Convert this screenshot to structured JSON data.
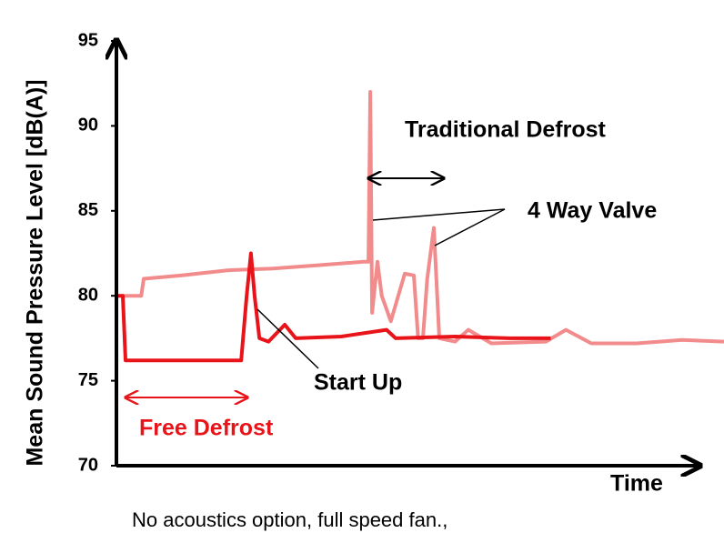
{
  "chart_data": {
    "type": "line",
    "ylabel": "Mean Sound Pressure Level  [dB(A)]",
    "xlabel": "Time",
    "note": "No acoustics option, full speed fan.,",
    "annotations": [
      "Traditional Defrost",
      "4 Way Valve",
      "Start Up",
      "Free Defrost"
    ],
    "ylim": [
      70,
      95
    ],
    "yticks": [
      70,
      75,
      80,
      85,
      90,
      95
    ],
    "xlim": [
      0,
      100
    ],
    "series": [
      {
        "color": "#f28b8b",
        "x": [
          0,
          2.3,
          3.8,
          4.2,
          10.5,
          18,
          25.5,
          33,
          40.5,
          41.3,
          41.6,
          41.9,
          42.8,
          43.5,
          45,
          47.3,
          48.8,
          49.5,
          50.3,
          51,
          52.1,
          53,
          55.6,
          57.8,
          61.6,
          70.6,
          73.9,
          78.1,
          85.6,
          93.1,
          100
        ],
        "values": [
          80,
          80,
          80,
          81,
          81.2,
          81.5,
          81.6,
          81.8,
          82,
          82,
          92,
          79,
          82,
          80,
          78.5,
          81.3,
          81.2,
          77.5,
          77.5,
          81,
          84,
          77.5,
          77.3,
          78,
          77.2,
          77.3,
          78,
          77.2,
          77.2,
          77.4,
          77.3
        ]
      },
      {
        "color": "#e8141a",
        "x": [
          0,
          0.75,
          1.2,
          20.3,
          21.2,
          21.9,
          22.5,
          23.3,
          24.8,
          27.5,
          29.3,
          36.8,
          44.3,
          45.8,
          55.6,
          64.6,
          71.4
        ],
        "values": [
          80,
          80,
          76.2,
          76.2,
          80,
          82.5,
          80,
          77.5,
          77.3,
          78.3,
          77.5,
          77.6,
          78,
          77.5,
          77.6,
          77.5,
          77.5
        ]
      }
    ]
  }
}
